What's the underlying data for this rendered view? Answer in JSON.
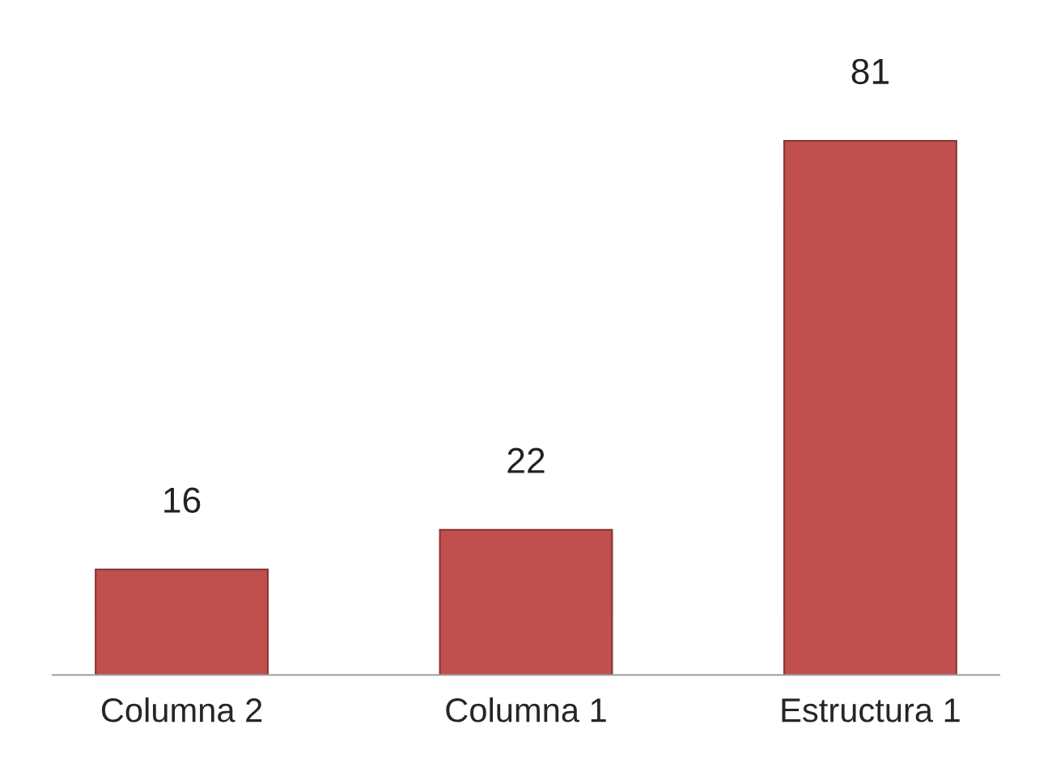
{
  "chart_data": {
    "type": "bar",
    "categories": [
      "Columna 2",
      "Columna 1",
      "Estructura 1"
    ],
    "values": [
      16,
      22,
      81
    ],
    "color": "#c0504d",
    "data_labels": true,
    "grid": false,
    "legend": false
  }
}
